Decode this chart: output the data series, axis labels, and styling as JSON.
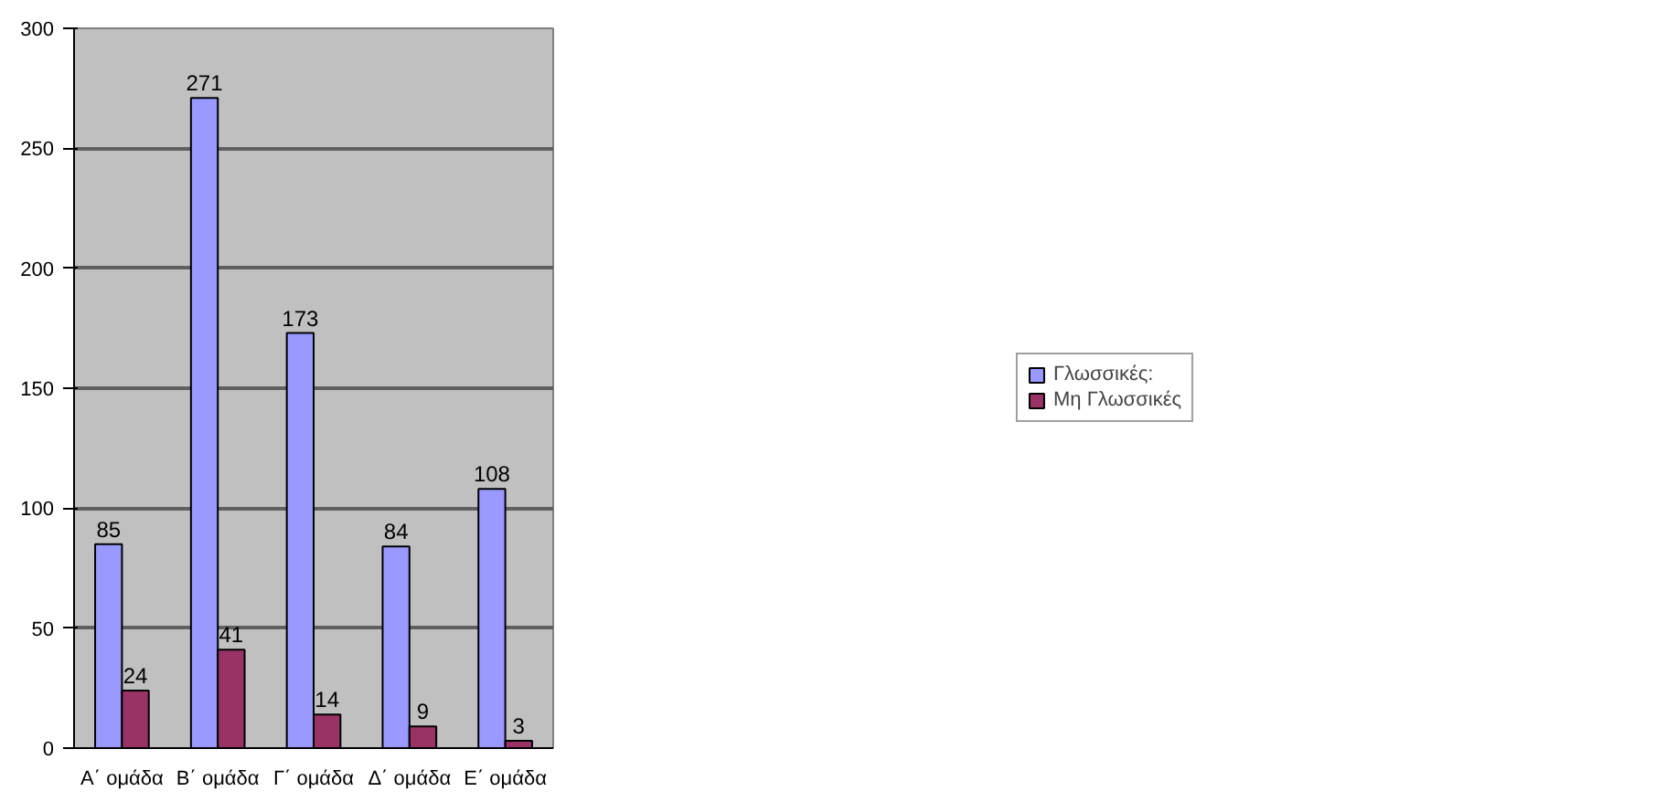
{
  "chart_data": {
    "type": "bar",
    "categories": [
      "Α΄ ομάδα",
      "Β΄ ομάδα",
      "Γ΄ ομάδα",
      "Δ΄ ομάδα",
      "Ε΄ ομάδα"
    ],
    "series": [
      {
        "name": "Γλωσσικές:",
        "color": "#9999ff",
        "values": [
          85,
          271,
          173,
          84,
          108
        ]
      },
      {
        "name": "Μη Γλωσσικές",
        "color": "#993366",
        "values": [
          24,
          41,
          14,
          9,
          3
        ]
      }
    ],
    "ylim": [
      0,
      300
    ],
    "yticks": [
      0,
      50,
      100,
      150,
      200,
      250,
      300
    ],
    "grid": "y",
    "legend": "right",
    "data_labels": true
  }
}
